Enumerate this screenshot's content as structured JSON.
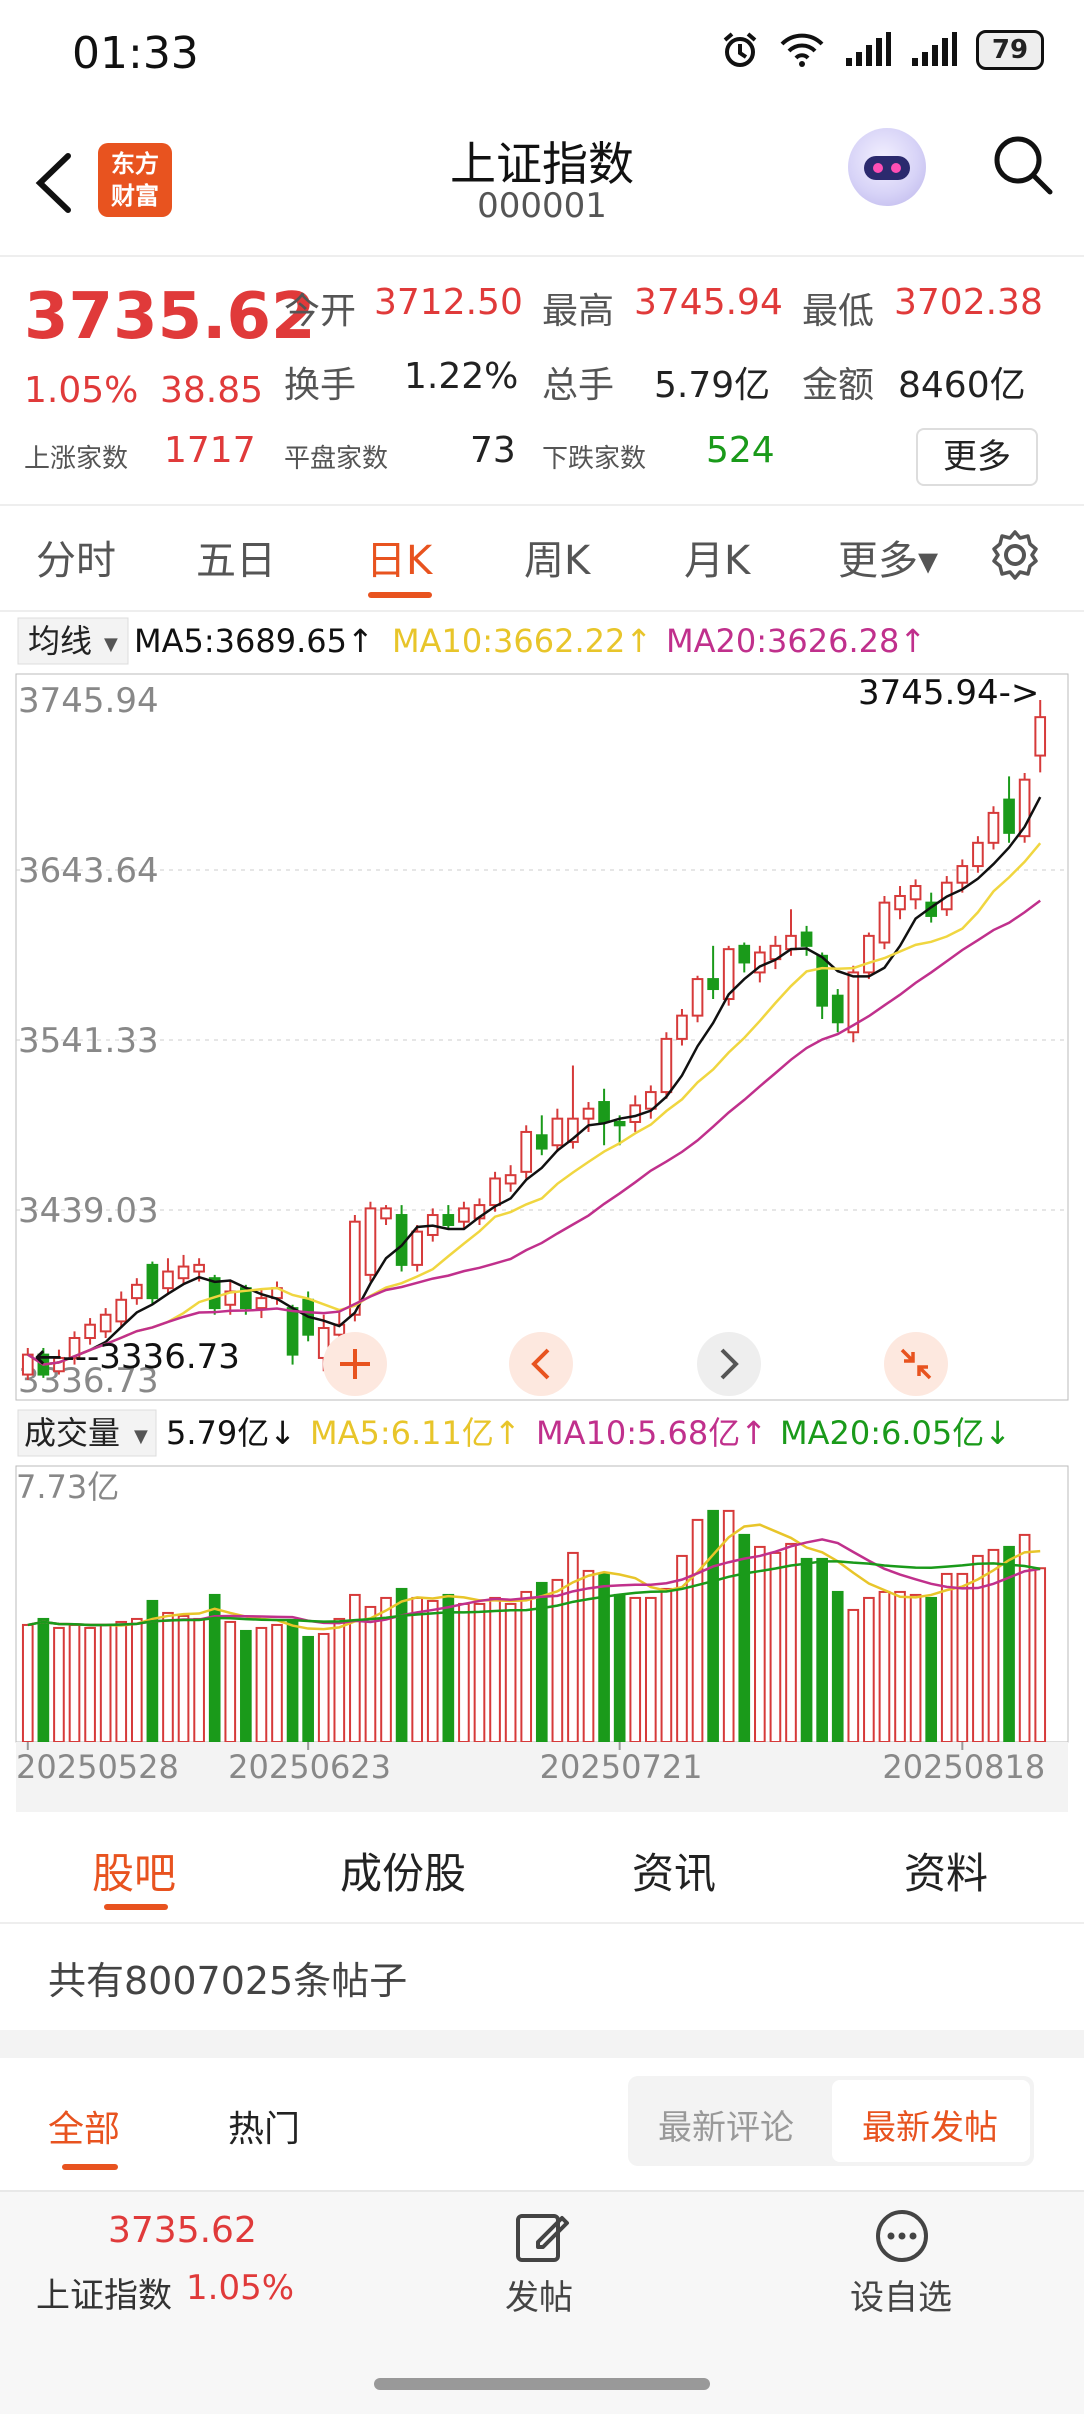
{
  "status_bar": {
    "time": "01:33",
    "battery": "79"
  },
  "header": {
    "logo_text_1": "东方",
    "logo_text_2": "财富",
    "title": "上证指数",
    "code": "000001"
  },
  "quote": {
    "price": "3735.62",
    "pct": "1.05%",
    "change": "38.85",
    "open_label": "今开",
    "open": "3712.50",
    "high_label": "最高",
    "high": "3745.94",
    "low_label": "最低",
    "low": "3702.38",
    "turnover_label": "换手",
    "turnover": "1.22%",
    "volume_label": "总手",
    "volume": "5.79亿",
    "amount_label": "金额",
    "amount": "8460亿",
    "up_label": "上涨家数",
    "up": "1717",
    "flat_label": "平盘家数",
    "flat": "73",
    "down_label": "下跌家数",
    "down": "524",
    "more": "更多"
  },
  "tabs": [
    "分时",
    "五日",
    "日K",
    "周K",
    "月K",
    "更多▾"
  ],
  "ma_legend": {
    "selector": "均线",
    "ma5": "MA5:3689.65↑",
    "ma10": "MA10:3662.22↑",
    "ma20": "MA20:3626.28↑"
  },
  "price_axis": [
    "3745.94",
    "3643.64",
    "3541.33",
    "3439.03",
    "3336.73"
  ],
  "max_marker": "3745.94->",
  "min_marker": "←---3336.73",
  "vol_legend": {
    "selector": "成交量",
    "vol": "5.79亿↓",
    "ma5": "MA5:6.11亿↑",
    "ma10": "MA10:5.68亿↑",
    "ma20": "MA20:6.05亿↓"
  },
  "vol_axis_max": "7.73亿",
  "date_labels": [
    "20250528",
    "20250623",
    "20250721",
    "20250818"
  ],
  "colors": {
    "up": "#d63a3a",
    "down": "#1a9a1a",
    "ma5": "#111111",
    "ma10": "#f0d640",
    "ma20": "#c0308c",
    "accent": "#e8531f"
  },
  "chart_data": {
    "type": "candlestick",
    "ylim": [
      3336.73,
      3745.94
    ],
    "candles": [
      {
        "o": 3340,
        "c": 3352,
        "h": 3356,
        "l": 3336.73,
        "v": 3.9
      },
      {
        "o": 3352,
        "c": 3340,
        "h": 3356,
        "l": 3338,
        "v": 4.1
      },
      {
        "o": 3342,
        "c": 3350,
        "h": 3355,
        "l": 3340,
        "v": 3.8
      },
      {
        "o": 3350,
        "c": 3362,
        "h": 3366,
        "l": 3346,
        "v": 3.9
      },
      {
        "o": 3362,
        "c": 3370,
        "h": 3374,
        "l": 3358,
        "v": 3.8
      },
      {
        "o": 3366,
        "c": 3376,
        "h": 3380,
        "l": 3362,
        "v": 3.9
      },
      {
        "o": 3372,
        "c": 3385,
        "h": 3390,
        "l": 3368,
        "v": 4.0
      },
      {
        "o": 3386,
        "c": 3394,
        "h": 3398,
        "l": 3382,
        "v": 4.1
      },
      {
        "o": 3406,
        "c": 3386,
        "h": 3408,
        "l": 3382,
        "v": 4.7
      },
      {
        "o": 3392,
        "c": 3402,
        "h": 3410,
        "l": 3388,
        "v": 4.3
      },
      {
        "o": 3398,
        "c": 3405,
        "h": 3412,
        "l": 3394,
        "v": 4.2
      },
      {
        "o": 3402,
        "c": 3406,
        "h": 3410,
        "l": 3396,
        "v": 4.1
      },
      {
        "o": 3398,
        "c": 3380,
        "h": 3400,
        "l": 3376,
        "v": 4.9
      },
      {
        "o": 3382,
        "c": 3390,
        "h": 3396,
        "l": 3376,
        "v": 4.0
      },
      {
        "o": 3392,
        "c": 3380,
        "h": 3394,
        "l": 3376,
        "v": 3.7
      },
      {
        "o": 3380,
        "c": 3386,
        "h": 3392,
        "l": 3374,
        "v": 3.8
      },
      {
        "o": 3386,
        "c": 3392,
        "h": 3396,
        "l": 3382,
        "v": 3.9
      },
      {
        "o": 3380,
        "c": 3352,
        "h": 3382,
        "l": 3346,
        "v": 4.0
      },
      {
        "o": 3385,
        "c": 3364,
        "h": 3390,
        "l": 3360,
        "v": 3.5
      },
      {
        "o": 3350,
        "c": 3368,
        "h": 3376,
        "l": 3342,
        "v": 3.6
      },
      {
        "o": 3364,
        "c": 3370,
        "h": 3378,
        "l": 3360,
        "v": 4.1
      },
      {
        "o": 3376,
        "c": 3432,
        "h": 3436,
        "l": 3372,
        "v": 4.9
      },
      {
        "o": 3400,
        "c": 3440,
        "h": 3444,
        "l": 3396,
        "v": 4.5
      },
      {
        "o": 3434,
        "c": 3440,
        "h": 3442,
        "l": 3430,
        "v": 4.8
      },
      {
        "o": 3436,
        "c": 3406,
        "h": 3442,
        "l": 3402,
        "v": 5.1
      },
      {
        "o": 3406,
        "c": 3426,
        "h": 3430,
        "l": 3402,
        "v": 4.8
      },
      {
        "o": 3424,
        "c": 3436,
        "h": 3440,
        "l": 3420,
        "v": 4.7
      },
      {
        "o": 3436,
        "c": 3430,
        "h": 3442,
        "l": 3428,
        "v": 4.9
      },
      {
        "o": 3432,
        "c": 3440,
        "h": 3444,
        "l": 3428,
        "v": 4.6
      },
      {
        "o": 3434,
        "c": 3442,
        "h": 3446,
        "l": 3430,
        "v": 4.6
      },
      {
        "o": 3442,
        "c": 3458,
        "h": 3462,
        "l": 3438,
        "v": 4.8
      },
      {
        "o": 3455,
        "c": 3460,
        "h": 3466,
        "l": 3450,
        "v": 4.6
      },
      {
        "o": 3462,
        "c": 3486,
        "h": 3490,
        "l": 3458,
        "v": 5.0
      },
      {
        "o": 3484,
        "c": 3476,
        "h": 3496,
        "l": 3472,
        "v": 5.3
      },
      {
        "o": 3478,
        "c": 3494,
        "h": 3500,
        "l": 3474,
        "v": 5.4
      },
      {
        "o": 3480,
        "c": 3494,
        "h": 3526,
        "l": 3476,
        "v": 6.3
      },
      {
        "o": 3494,
        "c": 3500,
        "h": 3504,
        "l": 3486,
        "v": 5.7
      },
      {
        "o": 3504,
        "c": 3492,
        "h": 3512,
        "l": 3478,
        "v": 5.6
      },
      {
        "o": 3492,
        "c": 3490,
        "h": 3496,
        "l": 3478,
        "v": 4.9
      },
      {
        "o": 3492,
        "c": 3502,
        "h": 3508,
        "l": 3486,
        "v": 4.8
      },
      {
        "o": 3500,
        "c": 3510,
        "h": 3514,
        "l": 3494,
        "v": 4.8
      },
      {
        "o": 3510,
        "c": 3542,
        "h": 3546,
        "l": 3506,
        "v": 5.1
      },
      {
        "o": 3542,
        "c": 3556,
        "h": 3560,
        "l": 3538,
        "v": 6.2
      },
      {
        "o": 3556,
        "c": 3578,
        "h": 3580,
        "l": 3552,
        "v": 7.4
      },
      {
        "o": 3578,
        "c": 3572,
        "h": 3598,
        "l": 3566,
        "v": 7.7
      },
      {
        "o": 3566,
        "c": 3596,
        "h": 3598,
        "l": 3562,
        "v": 7.7
      },
      {
        "o": 3598,
        "c": 3588,
        "h": 3600,
        "l": 3582,
        "v": 6.9
      },
      {
        "o": 3582,
        "c": 3594,
        "h": 3598,
        "l": 3576,
        "v": 6.5
      },
      {
        "o": 3590,
        "c": 3598,
        "h": 3604,
        "l": 3584,
        "v": 6.3
      },
      {
        "o": 3596,
        "c": 3604,
        "h": 3620,
        "l": 3592,
        "v": 6.6
      },
      {
        "o": 3606,
        "c": 3598,
        "h": 3610,
        "l": 3592,
        "v": 6.1
      },
      {
        "o": 3592,
        "c": 3562,
        "h": 3594,
        "l": 3554,
        "v": 6.1
      },
      {
        "o": 3568,
        "c": 3552,
        "h": 3572,
        "l": 3546,
        "v": 5.0
      },
      {
        "o": 3546,
        "c": 3582,
        "h": 3586,
        "l": 3540,
        "v": 4.4
      },
      {
        "o": 3582,
        "c": 3604,
        "h": 3606,
        "l": 3578,
        "v": 4.8
      },
      {
        "o": 3600,
        "c": 3624,
        "h": 3628,
        "l": 3596,
        "v": 5.0
      },
      {
        "o": 3620,
        "c": 3628,
        "h": 3634,
        "l": 3614,
        "v": 5.0
      },
      {
        "o": 3626,
        "c": 3634,
        "h": 3638,
        "l": 3620,
        "v": 4.9
      },
      {
        "o": 3624,
        "c": 3616,
        "h": 3630,
        "l": 3612,
        "v": 4.8
      },
      {
        "o": 3620,
        "c": 3636,
        "h": 3640,
        "l": 3616,
        "v": 5.6
      },
      {
        "o": 3636,
        "c": 3646,
        "h": 3650,
        "l": 3630,
        "v": 5.6
      },
      {
        "o": 3646,
        "c": 3660,
        "h": 3664,
        "l": 3642,
        "v": 6.2
      },
      {
        "o": 3660,
        "c": 3678,
        "h": 3682,
        "l": 3656,
        "v": 6.4
      },
      {
        "o": 3686,
        "c": 3666,
        "h": 3700,
        "l": 3660,
        "v": 6.5
      },
      {
        "o": 3664,
        "c": 3698,
        "h": 3702,
        "l": 3660,
        "v": 6.9
      },
      {
        "o": 3712.5,
        "c": 3735.62,
        "h": 3745.94,
        "l": 3702.38,
        "v": 5.79
      }
    ]
  },
  "sections": {
    "tabs": [
      "股吧",
      "成份股",
      "资讯",
      "资料"
    ],
    "post_count": "共有8007025条帖子"
  },
  "subtabs": {
    "all": "全部",
    "hot": "热门",
    "latest_comment": "最新评论",
    "latest_post": "最新发帖"
  },
  "bottom": {
    "price": "3735.62",
    "name": "上证指数",
    "pct": "1.05%",
    "post": "发帖",
    "watch": "设自选"
  }
}
